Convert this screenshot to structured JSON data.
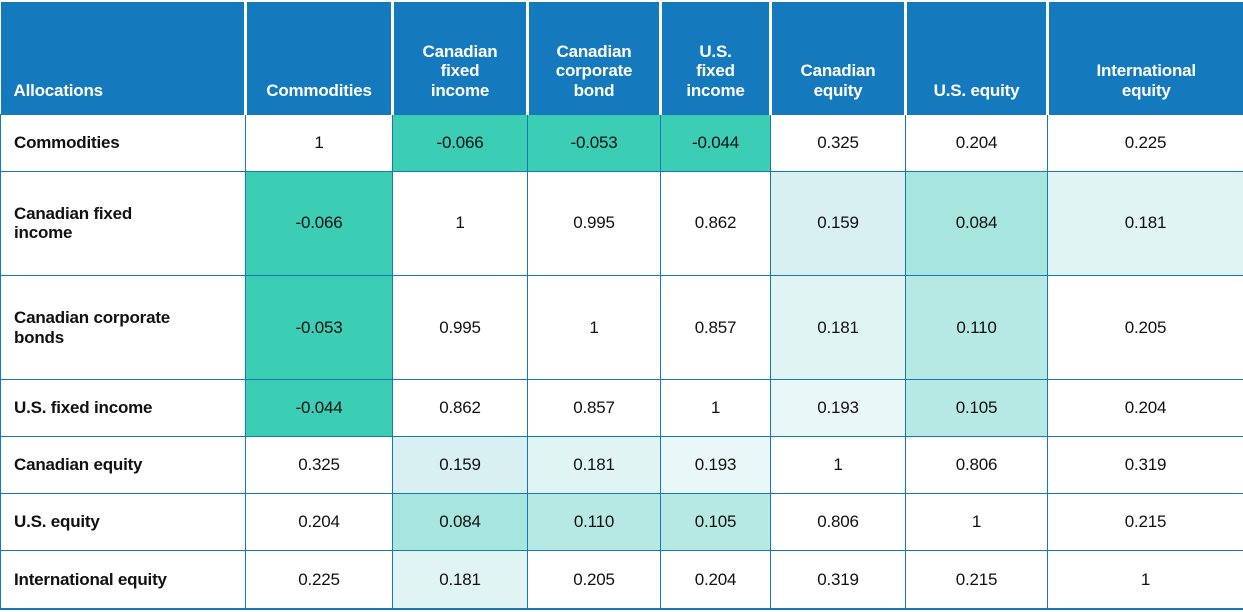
{
  "palette": {
    "header_bg": "#1579BD",
    "border": "#1577BC",
    "header_text": "#FFFFFF",
    "value_text": "#111111",
    "neg": "#3CCEB4",
    "l1": "#A7E6DE",
    "l2": "#B6E9E4",
    "l3": "#D8F0F2",
    "l4": "#E1F4F4",
    "l5": "#EAF7F8",
    "none": "#FFFFFF"
  },
  "table": {
    "corner_label": "Allocations",
    "columns": [
      "Commodities",
      "Canadian\nfixed\nincome",
      "Canadian\ncorporate\nbond",
      "U.S.\nfixed\nincome",
      "Canadian\nequity",
      "U.S. equity",
      "International\nequity"
    ],
    "rows": [
      {
        "label": "Commodities",
        "values": [
          "1",
          "-0.066",
          "-0.053",
          "-0.044",
          "0.325",
          "0.204",
          "0.225"
        ],
        "shades": [
          "none",
          "neg",
          "neg",
          "neg",
          "none",
          "none",
          "none"
        ]
      },
      {
        "label": "Canadian fixed\nincome",
        "values": [
          "-0.066",
          "1",
          "0.995",
          "0.862",
          "0.159",
          "0.084",
          "0.181"
        ],
        "shades": [
          "neg",
          "none",
          "none",
          "none",
          "l3",
          "l1",
          "l4"
        ]
      },
      {
        "label": "Canadian corporate\nbonds",
        "values": [
          "-0.053",
          "0.995",
          "1",
          "0.857",
          "0.181",
          "0.110",
          "0.205"
        ],
        "shades": [
          "neg",
          "none",
          "none",
          "none",
          "l4",
          "l2",
          "none"
        ]
      },
      {
        "label": "U.S. fixed income",
        "values": [
          "-0.044",
          "0.862",
          "0.857",
          "1",
          "0.193",
          "0.105",
          "0.204"
        ],
        "shades": [
          "neg",
          "none",
          "none",
          "none",
          "l5",
          "l2",
          "none"
        ]
      },
      {
        "label": "Canadian equity",
        "values": [
          "0.325",
          "0.159",
          "0.181",
          "0.193",
          "1",
          "0.806",
          "0.319"
        ],
        "shades": [
          "none",
          "l3",
          "l4",
          "l5",
          "none",
          "none",
          "none"
        ]
      },
      {
        "label": "U.S. equity",
        "values": [
          "0.204",
          "0.084",
          "0.110",
          "0.105",
          "0.806",
          "1",
          "0.215"
        ],
        "shades": [
          "none",
          "l1",
          "l2",
          "l2",
          "none",
          "none",
          "none"
        ]
      },
      {
        "label": "International equity",
        "values": [
          "0.225",
          "0.181",
          "0.205",
          "0.204",
          "0.319",
          "0.215",
          "1"
        ],
        "shades": [
          "none",
          "l4",
          "none",
          "none",
          "none",
          "none",
          "none"
        ]
      }
    ]
  },
  "chart_data": {
    "type": "heatmap",
    "x_categories": [
      "Commodities",
      "Canadian fixed income",
      "Canadian corporate bond",
      "U.S. fixed income",
      "Canadian equity",
      "U.S. equity",
      "International equity"
    ],
    "y_categories": [
      "Commodities",
      "Canadian fixed income",
      "Canadian corporate bonds",
      "U.S. fixed income",
      "Canadian equity",
      "U.S. equity",
      "International equity"
    ],
    "corner_label": "Allocations",
    "matrix": [
      [
        1,
        -0.066,
        -0.053,
        -0.044,
        0.325,
        0.204,
        0.225
      ],
      [
        -0.066,
        1,
        0.995,
        0.862,
        0.159,
        0.084,
        0.181
      ],
      [
        -0.053,
        0.995,
        1,
        0.857,
        0.181,
        0.11,
        0.205
      ],
      [
        -0.044,
        0.862,
        0.857,
        1,
        0.193,
        0.105,
        0.204
      ],
      [
        0.325,
        0.159,
        0.181,
        0.193,
        1,
        0.806,
        0.319
      ],
      [
        0.204,
        0.084,
        0.11,
        0.105,
        0.806,
        1,
        0.215
      ],
      [
        0.225,
        0.181,
        0.205,
        0.204,
        0.319,
        0.215,
        1
      ]
    ],
    "legend": "off",
    "grid": "on",
    "value_range": [
      -0.066,
      1
    ],
    "shading_rule": "cells with value < 0.2 shaded teal, darker as value decreases; negatives strongest"
  }
}
